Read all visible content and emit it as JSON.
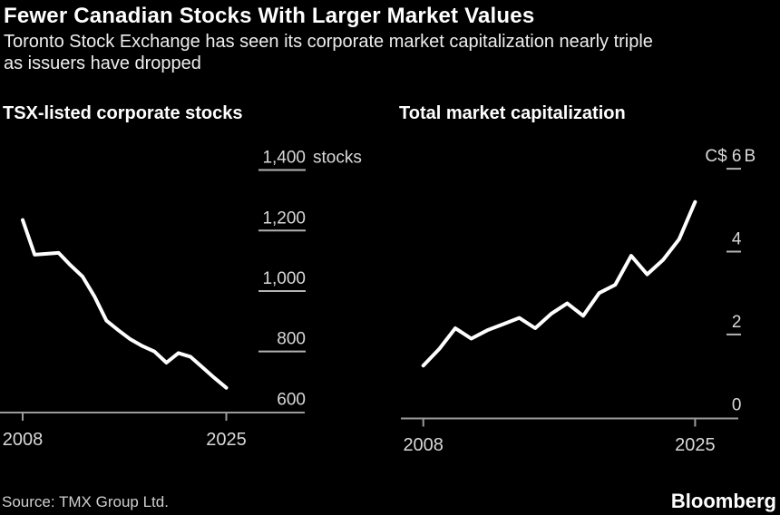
{
  "header": {
    "title": "Fewer Canadian Stocks With Larger Market Values",
    "subtitle_lines": [
      "Toronto Stock Exchange has seen its corporate market capitalization nearly triple",
      "as issuers have dropped"
    ]
  },
  "footer": {
    "source": "Source: TMX Group Ltd.",
    "brand": "Bloomberg"
  },
  "colors": {
    "background": "#000000",
    "title_text": "#ffffff",
    "muted_text": "#d9d9d9",
    "axis": "#9b9b9b",
    "tick_dash": "#b3b3b3",
    "series": "#ffffff"
  },
  "chart_data": [
    {
      "type": "line",
      "title": "TSX-listed corporate stocks",
      "ylabel_suffix": "stocks",
      "x": [
        2008,
        2009,
        2010,
        2011,
        2012,
        2013,
        2014,
        2015,
        2016,
        2017,
        2018,
        2019,
        2020,
        2021,
        2022,
        2023,
        2024,
        2025
      ],
      "values": [
        1235,
        1120,
        1123,
        1126,
        1085,
        1048,
        982,
        902,
        870,
        840,
        818,
        800,
        763,
        795,
        783,
        748,
        713,
        680
      ],
      "ylim": [
        600,
        1400
      ],
      "xlim": [
        2008,
        2025
      ],
      "grid": "right-side tick dashes only",
      "legend": "none",
      "yticks": [
        {
          "value": 1400,
          "label": "1,400",
          "suffix": "stocks",
          "dash": true
        },
        {
          "value": 1200,
          "label": "1,200",
          "dash": true
        },
        {
          "value": 1000,
          "label": "1,000",
          "dash": true
        },
        {
          "value": 800,
          "label": "800",
          "dash": true
        },
        {
          "value": 600,
          "label": "600",
          "dash": false
        }
      ],
      "xticks": [
        {
          "value": 2008,
          "label": "2008"
        },
        {
          "value": 2025,
          "label": "2025"
        }
      ]
    },
    {
      "type": "line",
      "title": "Total market capitalization",
      "ylabel_prefix": "C$",
      "ylabel_suffix": "B",
      "x": [
        2008,
        2009,
        2010,
        2011,
        2012,
        2013,
        2014,
        2015,
        2016,
        2017,
        2018,
        2019,
        2020,
        2021,
        2022,
        2023,
        2024,
        2025
      ],
      "values": [
        1.25,
        1.65,
        2.15,
        1.9,
        2.1,
        2.25,
        2.4,
        2.15,
        2.5,
        2.75,
        2.45,
        3.0,
        3.2,
        3.9,
        3.45,
        3.8,
        4.3,
        5.2
      ],
      "ylim": [
        0,
        6
      ],
      "xlim": [
        2008,
        2025
      ],
      "grid": "right-side tick dashes only",
      "legend": "none",
      "yticks": [
        {
          "value": 6,
          "label": "C$ 6",
          "suffix": "B",
          "dash": true
        },
        {
          "value": 4,
          "label": "4",
          "dash": true
        },
        {
          "value": 2,
          "label": "2",
          "dash": true
        },
        {
          "value": 0,
          "label": "0",
          "dash": false
        }
      ],
      "xticks": [
        {
          "value": 2008,
          "label": "2008"
        },
        {
          "value": 2025,
          "label": "2025"
        }
      ]
    }
  ]
}
